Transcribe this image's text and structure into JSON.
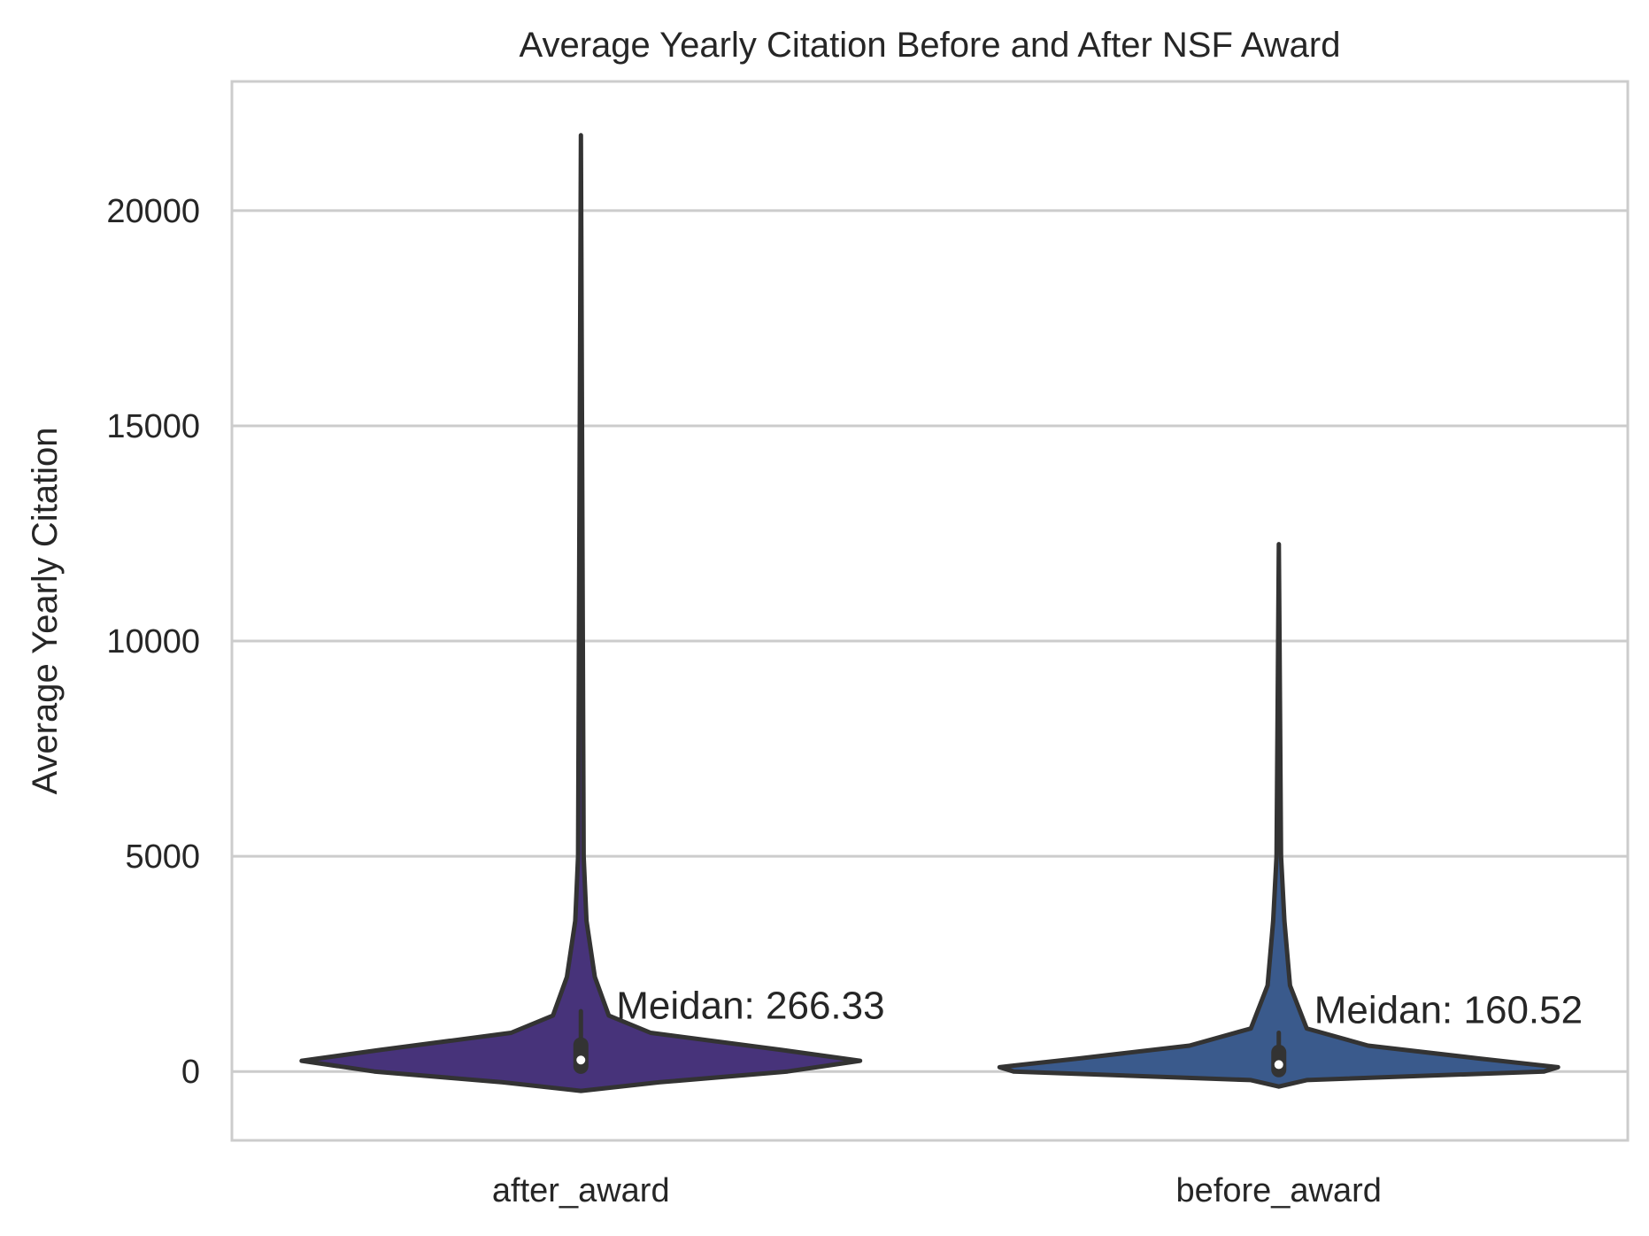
{
  "chart_data": {
    "type": "violin",
    "title": "Average Yearly Citation Before and After NSF Award",
    "xlabel": "",
    "ylabel": "Average Yearly Citation",
    "ylim": [
      -1600,
      23000
    ],
    "yticks": [
      0,
      5000,
      10000,
      15000,
      20000
    ],
    "grid": true,
    "categories": [
      "after_award",
      "before_award"
    ],
    "series": [
      {
        "category": "after_award",
        "color": "#47337a",
        "min": -450,
        "max": 21750,
        "q1": 120,
        "median": 266.33,
        "q3": 620,
        "whisker_low": 0,
        "whisker_high": 1400,
        "annotation": "Meidan: 266.33",
        "density_profile": [
          {
            "y": -450,
            "halfwidth": 0.0
          },
          {
            "y": -250,
            "halfwidth": 0.28
          },
          {
            "y": 0,
            "halfwidth": 0.74
          },
          {
            "y": 250,
            "halfwidth": 1.0
          },
          {
            "y": 500,
            "halfwidth": 0.72
          },
          {
            "y": 900,
            "halfwidth": 0.25
          },
          {
            "y": 1300,
            "halfwidth": 0.1
          },
          {
            "y": 2200,
            "halfwidth": 0.05
          },
          {
            "y": 3500,
            "halfwidth": 0.02
          },
          {
            "y": 5000,
            "halfwidth": 0.01
          },
          {
            "y": 21750,
            "halfwidth": 0.0
          }
        ]
      },
      {
        "category": "before_award",
        "color": "#3a5a8c",
        "min": -350,
        "max": 12250,
        "q1": 40,
        "median": 160.52,
        "q3": 450,
        "whisker_low": 0,
        "whisker_high": 900,
        "annotation": "Meidan: 160.52",
        "density_profile": [
          {
            "y": -350,
            "halfwidth": 0.0
          },
          {
            "y": -200,
            "halfwidth": 0.1
          },
          {
            "y": 0,
            "halfwidth": 0.95
          },
          {
            "y": 100,
            "halfwidth": 1.0
          },
          {
            "y": 300,
            "halfwidth": 0.72
          },
          {
            "y": 600,
            "halfwidth": 0.32
          },
          {
            "y": 1000,
            "halfwidth": 0.1
          },
          {
            "y": 2000,
            "halfwidth": 0.04
          },
          {
            "y": 3500,
            "halfwidth": 0.02
          },
          {
            "y": 5000,
            "halfwidth": 0.008
          },
          {
            "y": 12250,
            "halfwidth": 0.0
          }
        ]
      }
    ]
  }
}
